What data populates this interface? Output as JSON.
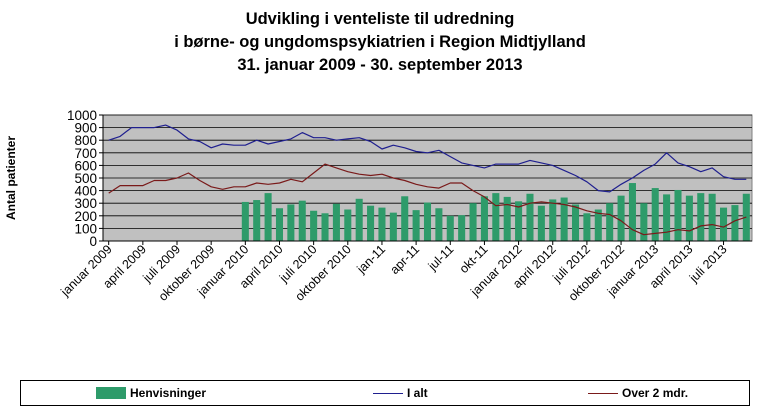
{
  "chart_data": {
    "type": "bar",
    "title": "Udvikling i venteliste til udredning",
    "subtitle_line2": "i børne- og ungdomspsykiatrien i Region Midtjylland",
    "subtitle_line3": "31. januar 2009 - 30. september 2013",
    "ylabel": "Antal patienter",
    "ylim": [
      0,
      1000
    ],
    "yticks": [
      "0",
      "100",
      "200",
      "300",
      "400",
      "500",
      "600",
      "700",
      "800",
      "900",
      "1000"
    ],
    "grid": true,
    "legend_position": "bottom",
    "x": [
      "2009-01",
      "2009-02",
      "2009-03",
      "2009-04",
      "2009-05",
      "2009-06",
      "2009-07",
      "2009-08",
      "2009-09",
      "2009-10",
      "2009-11",
      "2009-12",
      "2010-01",
      "2010-02",
      "2010-03",
      "2010-04",
      "2010-05",
      "2010-06",
      "2010-07",
      "2010-08",
      "2010-09",
      "2010-10",
      "2010-11",
      "2010-12",
      "2011-01",
      "2011-02",
      "2011-03",
      "2011-04",
      "2011-05",
      "2011-06",
      "2011-07",
      "2011-08",
      "2011-09",
      "2011-10",
      "2011-11",
      "2011-12",
      "2012-01",
      "2012-02",
      "2012-03",
      "2012-04",
      "2012-05",
      "2012-06",
      "2012-07",
      "2012-08",
      "2012-09",
      "2012-10",
      "2012-11",
      "2012-12",
      "2013-01",
      "2013-02",
      "2013-03",
      "2013-04",
      "2013-05",
      "2013-06",
      "2013-07",
      "2013-08",
      "2013-09"
    ],
    "x_tick_labels": [
      {
        "index": 0,
        "label": "januar 2009"
      },
      {
        "index": 3,
        "label": "april 2009"
      },
      {
        "index": 6,
        "label": "juli 2009"
      },
      {
        "index": 9,
        "label": "oktober 2009"
      },
      {
        "index": 12,
        "label": "januar 2010"
      },
      {
        "index": 15,
        "label": "april 2010"
      },
      {
        "index": 18,
        "label": "juli 2010"
      },
      {
        "index": 21,
        "label": "oktober 2010"
      },
      {
        "index": 24,
        "label": "jan-11"
      },
      {
        "index": 27,
        "label": "apr-11"
      },
      {
        "index": 30,
        "label": "jul-11"
      },
      {
        "index": 33,
        "label": "okt-11"
      },
      {
        "index": 36,
        "label": "januar 2012"
      },
      {
        "index": 39,
        "label": "april 2012"
      },
      {
        "index": 42,
        "label": "juli 2012"
      },
      {
        "index": 45,
        "label": "oktober 2012"
      },
      {
        "index": 48,
        "label": "januar 2013"
      },
      {
        "index": 51,
        "label": "april 2013"
      },
      {
        "index": 54,
        "label": "juli 2013"
      }
    ],
    "series": [
      {
        "name": "Henvisninger",
        "kind": "bar",
        "color": "#2e9b6a",
        "values": [
          null,
          null,
          null,
          null,
          null,
          null,
          null,
          null,
          null,
          null,
          null,
          null,
          310,
          325,
          380,
          260,
          290,
          320,
          240,
          220,
          295,
          250,
          335,
          280,
          265,
          225,
          355,
          245,
          305,
          260,
          200,
          205,
          300,
          355,
          380,
          350,
          315,
          375,
          280,
          330,
          345,
          290,
          220,
          250,
          300,
          360,
          460,
          300,
          420,
          370,
          405,
          360,
          380,
          375,
          265,
          285,
          375
        ]
      },
      {
        "name": "I alt",
        "kind": "line",
        "color": "#1f1f8f",
        "values": [
          800,
          830,
          900,
          900,
          900,
          920,
          880,
          810,
          790,
          740,
          770,
          760,
          760,
          800,
          770,
          790,
          810,
          860,
          820,
          820,
          800,
          810,
          820,
          790,
          730,
          760,
          740,
          710,
          700,
          720,
          670,
          620,
          600,
          580,
          610,
          610,
          610,
          640,
          620,
          600,
          560,
          520,
          470,
          400,
          390,
          450,
          500,
          560,
          610,
          700,
          620,
          590,
          550,
          580,
          510,
          490,
          490
        ]
      },
      {
        "name": "Over 2 mdr.",
        "kind": "line",
        "color": "#7a1a1a",
        "values": [
          380,
          440,
          440,
          440,
          480,
          480,
          500,
          540,
          480,
          430,
          410,
          430,
          430,
          460,
          450,
          460,
          490,
          470,
          540,
          610,
          580,
          550,
          530,
          520,
          530,
          500,
          480,
          450,
          430,
          420,
          460,
          460,
          400,
          350,
          280,
          290,
          270,
          300,
          310,
          300,
          290,
          270,
          240,
          220,
          210,
          160,
          90,
          50,
          60,
          70,
          90,
          80,
          120,
          130,
          110,
          160,
          190
        ]
      }
    ]
  },
  "legend": {
    "bars_label": "Henvisninger",
    "total_label": "I alt",
    "over2_label": "Over 2 mdr."
  }
}
